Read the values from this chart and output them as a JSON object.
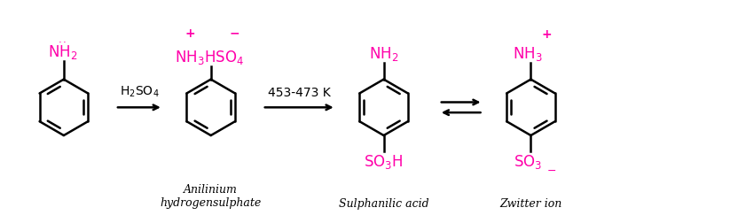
{
  "bg_color": "#ffffff",
  "magenta": "#FF00AA",
  "black": "#000000",
  "gray": "#333333",
  "figsize": [
    8.32,
    2.53
  ],
  "dpi": 100,
  "label_anilinium": "Anilinium\nhydrogensulphate",
  "label_sulphanilic": "Sulphanilic acid",
  "label_zwitter": "Zwitter ion"
}
